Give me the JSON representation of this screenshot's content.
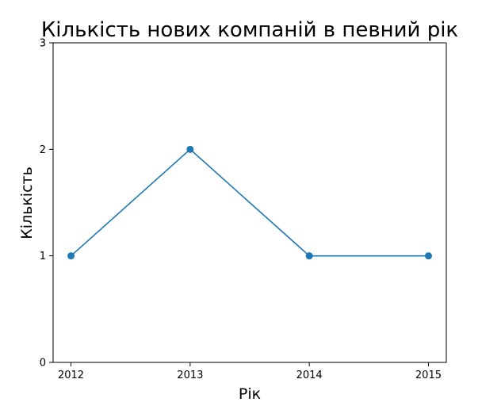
{
  "chart_data": {
    "type": "line",
    "title": "Кількість нових компаній в певний рік",
    "xlabel": "Рік",
    "ylabel": "Кількість",
    "x": [
      2012,
      2013,
      2014,
      2015
    ],
    "y": [
      1,
      2,
      1,
      1
    ],
    "xticks": [
      "2012",
      "2013",
      "2014",
      "2015"
    ],
    "yticks": [
      "0",
      "1",
      "2",
      "3"
    ],
    "ylim": [
      0,
      3
    ],
    "xlim": [
      2011.85,
      2015.15
    ],
    "grid": false,
    "marker": "circle",
    "line_color": "#1f77b4"
  }
}
